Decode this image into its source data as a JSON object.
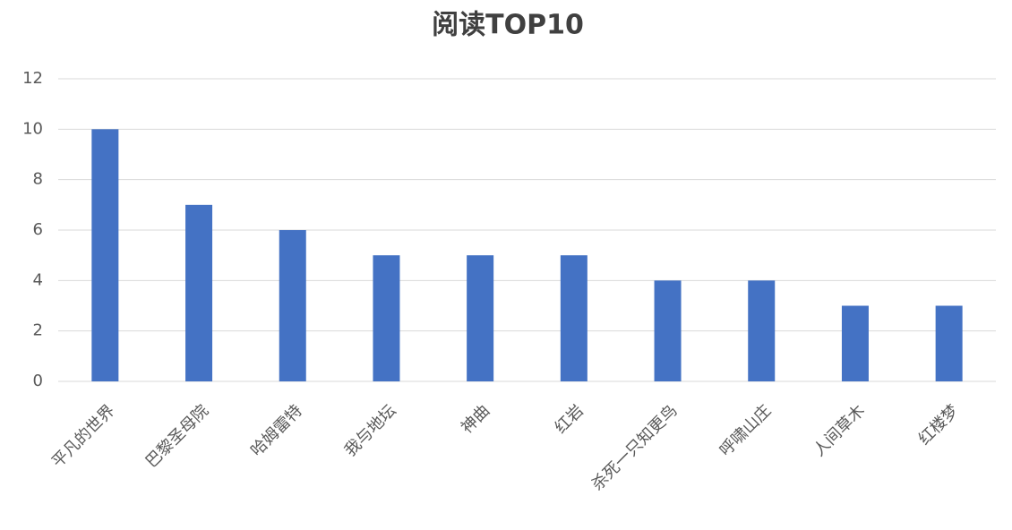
{
  "chart_data": {
    "type": "bar",
    "title": "阅读TOP10",
    "categories": [
      "平凡的世界",
      "巴黎圣母院",
      "哈姆雷特",
      "我与地坛",
      "神曲",
      "红岩",
      "杀死一只知更鸟",
      "呼啸山庄",
      "人间草木",
      "红楼梦"
    ],
    "values": [
      10,
      7,
      6,
      5,
      5,
      5,
      4,
      4,
      3,
      3
    ],
    "color": "#4472c4",
    "ylim": [
      0,
      12
    ],
    "yticks": [
      0,
      2,
      4,
      6,
      8,
      10,
      12
    ],
    "grid": true
  }
}
